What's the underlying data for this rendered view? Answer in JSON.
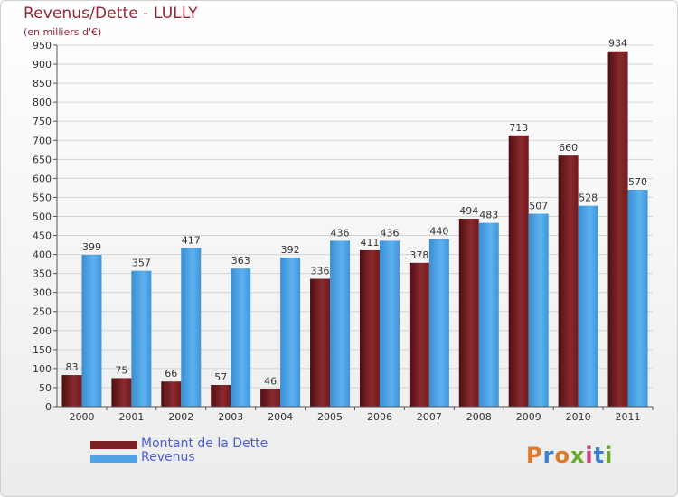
{
  "title": "Revenus/Dette - LULLY",
  "subtitle": "(en milliers d'€)",
  "logo": "Proxiti",
  "colors": {
    "dette": "#7a1f22",
    "revenus": "#4ea3e4",
    "title": "#9b2335"
  },
  "chart_data": {
    "type": "bar",
    "categories": [
      "2000",
      "2001",
      "2002",
      "2003",
      "2004",
      "2005",
      "2006",
      "2007",
      "2008",
      "2009",
      "2010",
      "2011"
    ],
    "series": [
      {
        "name": "Montant de la Dette",
        "values": [
          83,
          75,
          66,
          57,
          46,
          336,
          411,
          378,
          494,
          713,
          660,
          934
        ]
      },
      {
        "name": "Revenus",
        "values": [
          399,
          357,
          417,
          363,
          392,
          436,
          436,
          440,
          483,
          507,
          528,
          570
        ]
      }
    ],
    "ylim": [
      0,
      950
    ],
    "yticks": [
      0,
      50,
      100,
      150,
      200,
      250,
      300,
      350,
      400,
      450,
      500,
      550,
      600,
      650,
      700,
      750,
      800,
      850,
      900,
      950
    ],
    "grid": true,
    "legend": "bottom-left"
  }
}
